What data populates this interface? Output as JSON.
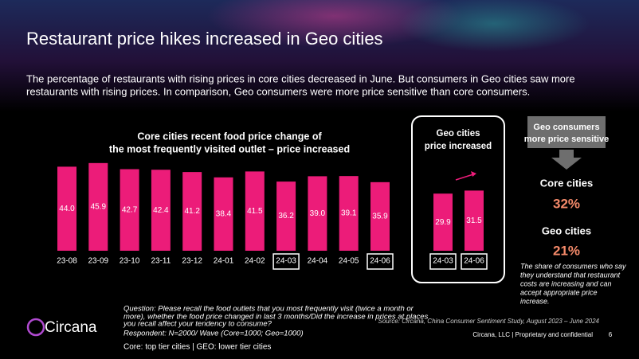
{
  "title": "Restaurant price hikes increased in Geo cities",
  "subtitle": [
    "The percentage of restaurants with rising prices in core cities decreased in June. But consumers in Geo cities saw more",
    "restaurants with rising prices. In comparison, Geo consumers were more price sensitive than core consumers."
  ],
  "chart_data": [
    {
      "type": "bar",
      "title": [
        "Core cities recent food price change of",
        "the most frequently visited outlet – price increased"
      ],
      "categories": [
        "23-08",
        "23-09",
        "23-10",
        "23-11",
        "23-12",
        "24-01",
        "24-02",
        "24-03",
        "24-04",
        "24-05",
        "24-06"
      ],
      "values": [
        44.0,
        45.9,
        42.7,
        42.4,
        41.2,
        38.4,
        41.5,
        36.2,
        39.0,
        39.1,
        35.9
      ],
      "value_labels": [
        "44.0",
        "45.9",
        "42.7",
        "42.4",
        "41.2",
        "38.4",
        "41.5",
        "36.2",
        "39.0",
        "39.1",
        "35.9"
      ],
      "highlight_indices": [
        7,
        10
      ],
      "color": "#ec1c79",
      "ylim": [
        0,
        50
      ]
    },
    {
      "type": "bar",
      "title": [
        "Geo cities",
        "price increased"
      ],
      "categories": [
        "24-03",
        "24-06"
      ],
      "values": [
        29.9,
        31.5
      ],
      "value_labels": [
        "29.9",
        "31.5"
      ],
      "highlight_indices": [
        0,
        1
      ],
      "color": "#ec1c79",
      "ylim": [
        0,
        50
      ]
    }
  ],
  "side": {
    "header": [
      "Geo consumers",
      "more price sensitive"
    ],
    "core_label": "Core cities",
    "core_value": "32%",
    "geo_label": "Geo cities",
    "geo_value": "21%",
    "note": [
      "The share of consumers who say",
      "they understand that restaurant",
      "costs are increasing and can",
      "accept appropriate price",
      "increase."
    ]
  },
  "footer": {
    "question": [
      "Question: Please recall the food outlets that you most frequently visit (twice a month or",
      "more), whether the food price changed in last 3 months/Did the increase in prices at places",
      "you recall affect your tendency to consume?"
    ],
    "respondent": "Respondent: N=2000/ Wave (Core=1000; Geo=1000)",
    "definition": "Core: top tier cities | GEO: lower tier cities",
    "source": "Source: Circana, China Consumer Sentiment Study, August 2023 – June 2024",
    "company": "Circana, LLC  |  Proprietary and confidential",
    "page": "6",
    "logo": "Circana"
  }
}
